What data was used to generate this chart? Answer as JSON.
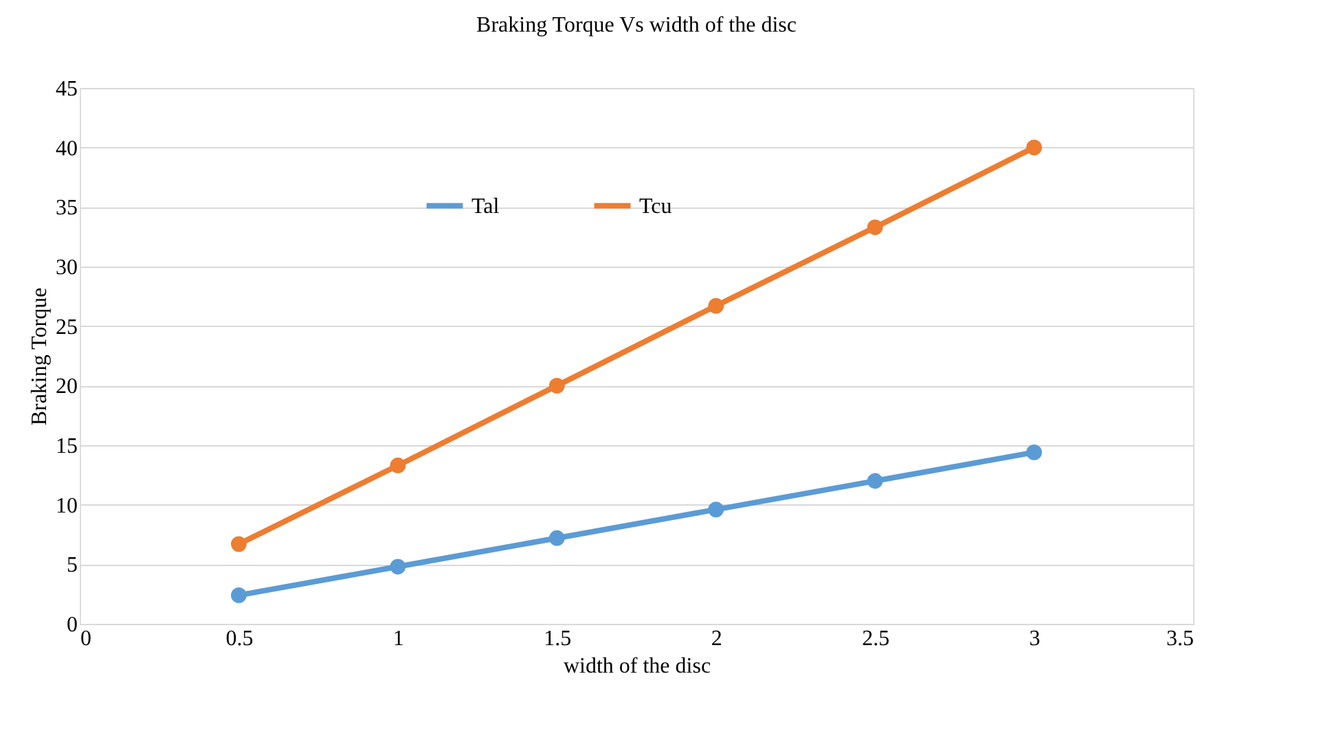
{
  "chart_data": {
    "type": "line",
    "title": "Braking Torque Vs width of the disc",
    "xlabel": "width of the  disc",
    "ylabel": "Braking Torque",
    "x": [
      0.5,
      1,
      1.5,
      2,
      2.5,
      3
    ],
    "series": [
      {
        "name": "Tal",
        "color": "#5b9bd5",
        "values": [
          2.4,
          4.8,
          7.2,
          9.6,
          12.0,
          14.4
        ]
      },
      {
        "name": "Tcu",
        "color": "#ed7d31",
        "values": [
          6.7,
          13.3,
          20.0,
          26.7,
          33.3,
          40.0
        ]
      }
    ],
    "xlim": [
      0,
      3.5
    ],
    "xticks": [
      0,
      0.5,
      1,
      1.5,
      2,
      2.5,
      3,
      3.5
    ],
    "ylim": [
      0,
      45
    ],
    "yticks": [
      0,
      5,
      10,
      15,
      20,
      25,
      30,
      35,
      40,
      45
    ],
    "grid": "y",
    "legend": "top",
    "marker": "circle",
    "line_style": "solid"
  }
}
